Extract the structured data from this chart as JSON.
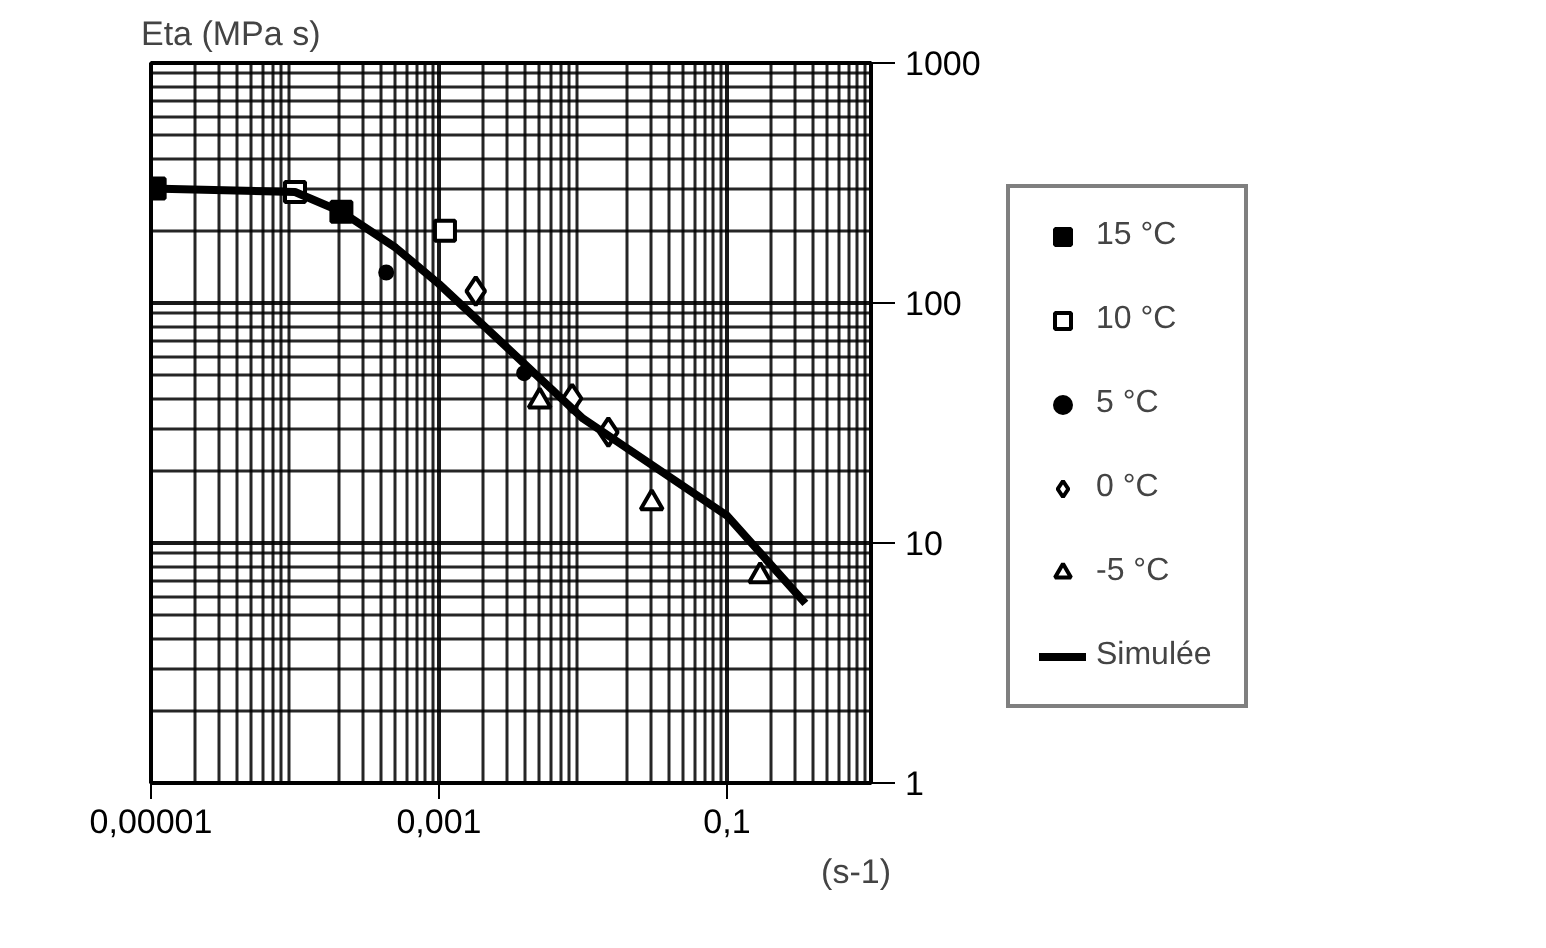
{
  "chart_data": {
    "type": "scatter",
    "ylabel": "Eta (MPa s)",
    "xlabel": "(s-1)",
    "log": "xy",
    "grid": true,
    "legend": "right",
    "xlim": [
      1e-05,
      1
    ],
    "xticks": [
      {
        "value": 1e-05,
        "label": "0,00001"
      },
      {
        "value": 0.001,
        "label": "0,001"
      },
      {
        "value": 0.1,
        "label": "0,1"
      }
    ],
    "ylim": [
      1,
      1000
    ],
    "yticks": [
      1,
      10,
      100,
      1000
    ],
    "series": [
      {
        "name": "15 °C",
        "color": "#000000",
        "marker": "square",
        "x": [
          1.06e-05,
          0.00021
        ],
        "values": [
          300,
          240
        ]
      },
      {
        "name": "10 °C",
        "color": "#ffffff",
        "marker": "square",
        "x": [
          0.0001,
          0.0011
        ],
        "values": [
          290,
          200
        ]
      },
      {
        "name": "5 °C",
        "color": "#000000",
        "marker": "circle",
        "x": [
          0.00043,
          0.0039
        ],
        "values": [
          134,
          51
        ]
      },
      {
        "name": "0 °C",
        "color": "#ffffff",
        "marker": "diamond",
        "x": [
          0.0018,
          0.0084,
          0.015
        ],
        "values": [
          112,
          40,
          29
        ]
      },
      {
        "name": "-5 °C",
        "color": "#ffffff",
        "marker": "triangle",
        "x": [
          0.005,
          0.03,
          0.17
        ],
        "values": [
          39,
          14.7,
          7.3
        ]
      },
      {
        "name": "Simulée",
        "type": "line",
        "color": "#000000",
        "marker": "none",
        "x": [
          1e-05,
          0.0001,
          0.00021,
          0.0005,
          0.001,
          0.01,
          0.1,
          0.35
        ],
        "values": [
          300,
          290,
          240,
          170,
          120,
          33,
          13,
          5.6
        ]
      }
    ]
  }
}
